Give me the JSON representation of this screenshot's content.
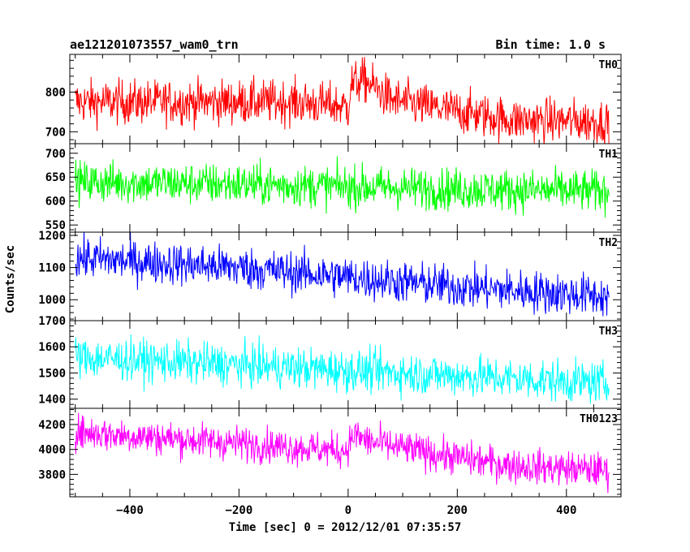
{
  "header": {
    "left_title": "ae121201073557_wam0_trn",
    "right_title": "Bin time: 1.0 s"
  },
  "axes": {
    "xlabel": "Time [sec] 0 = 2012/12/01 07:35:57",
    "ylabel": "Counts/sec"
  },
  "chart_data": {
    "type": "line",
    "x_range": [
      -510,
      500
    ],
    "x_ticks": [
      -400,
      -200,
      0,
      200,
      400
    ],
    "x_tick_labels": [
      "−400",
      "−200",
      "0",
      "200",
      "400"
    ],
    "data_start": -500,
    "data_end": 478,
    "bin_time": 1.0,
    "grid": false,
    "panels": [
      {
        "name": "TH0",
        "color": "#ff0000",
        "ylim": [
          670,
          895
        ],
        "yticks": [
          700,
          800
        ],
        "trend": [
          [
            -500,
            775
          ],
          [
            -100,
            775
          ],
          [
            -10,
            765
          ],
          [
            0,
            760
          ],
          [
            5,
            820
          ],
          [
            30,
            830
          ],
          [
            80,
            780
          ],
          [
            160,
            760
          ],
          [
            300,
            730
          ],
          [
            478,
            725
          ]
        ],
        "noise": 28
      },
      {
        "name": "TH1",
        "color": "#00ff00",
        "ylim": [
          535,
          720
        ],
        "yticks": [
          550,
          600,
          650,
          700
        ],
        "trend": [
          [
            -500,
            640
          ],
          [
            -200,
            635
          ],
          [
            0,
            630
          ],
          [
            200,
            625
          ],
          [
            478,
            620
          ]
        ],
        "noise": 22
      },
      {
        "name": "TH2",
        "color": "#0000ff",
        "ylim": [
          935,
          1210
        ],
        "yticks": [
          1000,
          1100,
          1200
        ],
        "trend": [
          [
            -500,
            1130
          ],
          [
            -200,
            1100
          ],
          [
            0,
            1070
          ],
          [
            200,
            1040
          ],
          [
            478,
            1010
          ]
        ],
        "noise": 33
      },
      {
        "name": "TH3",
        "color": "#00ffff",
        "ylim": [
          1365,
          1700
        ],
        "yticks": [
          1400,
          1500,
          1600,
          1700
        ],
        "trend": [
          [
            -500,
            1560
          ],
          [
            -200,
            1530
          ],
          [
            0,
            1510
          ],
          [
            200,
            1490
          ],
          [
            478,
            1460
          ]
        ],
        "noise": 40
      },
      {
        "name": "TH0123",
        "color": "#ff00ff",
        "ylim": [
          3620,
          4330
        ],
        "yticks": [
          3800,
          4000,
          4200
        ],
        "trend": [
          [
            -500,
            4140
          ],
          [
            -200,
            4050
          ],
          [
            -10,
            3990
          ],
          [
            0,
            4020
          ],
          [
            10,
            4120
          ],
          [
            40,
            4060
          ],
          [
            150,
            3970
          ],
          [
            300,
            3870
          ],
          [
            478,
            3830
          ]
        ],
        "noise": 70
      }
    ]
  }
}
